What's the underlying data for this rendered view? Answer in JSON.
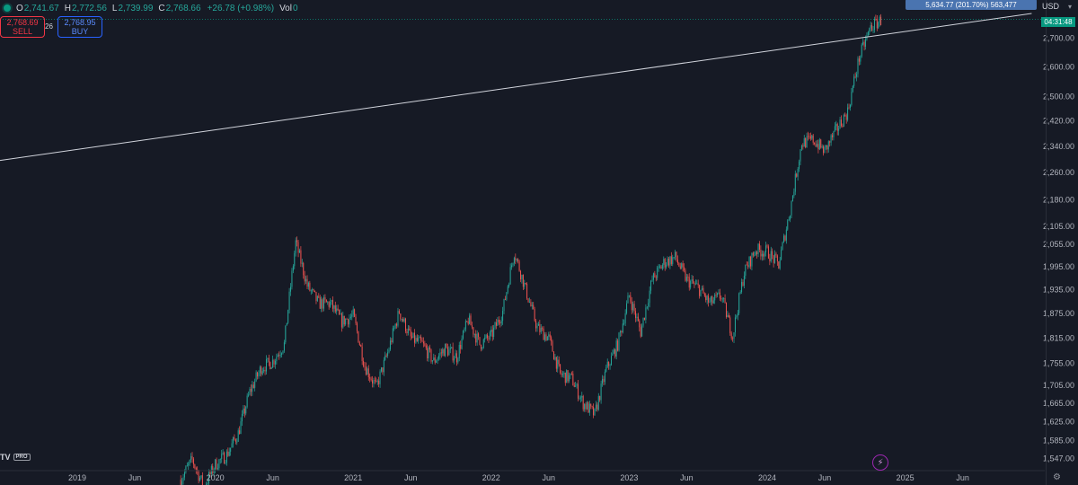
{
  "ohlc": {
    "open_label": "O",
    "open": "2,741.67",
    "high_label": "H",
    "high": "2,772.56",
    "low_label": "L",
    "low": "2,739.99",
    "close_label": "C",
    "close": "2,768.66",
    "change": "+26.78 (+0.98%)",
    "vol_label": "Vol",
    "vol": "0"
  },
  "trade": {
    "sell_price": "2,768.69",
    "sell_label": "SELL",
    "spread": "26",
    "buy_price": "2,768.95",
    "buy_label": "BUY"
  },
  "price_scale": {
    "currency": "USD",
    "ticks": [
      "2,700.00",
      "2,600.00",
      "2,500.00",
      "2,420.00",
      "2,340.00",
      "2,260.00",
      "2,180.00",
      "2,105.00",
      "2,055.00",
      "1,995.00",
      "1,935.00",
      "1,875.00",
      "1,815.00",
      "1,755.00",
      "1,705.00",
      "1,665.00",
      "1,625.00",
      "1,585.00",
      "1,547.00"
    ],
    "countdown": "04:31:48",
    "measure_tag": "5,634.77 (201.70%) 563,477"
  },
  "logo": {
    "text": "TV",
    "badge": "PRO"
  },
  "chart_data": {
    "type": "candlestick",
    "x_axis_labels": [
      "2019",
      "Jun",
      "2020",
      "Jun",
      "2021",
      "Jun",
      "2022",
      "Jun",
      "2023",
      "Jun",
      "2024",
      "Jun",
      "2025",
      "Jun"
    ],
    "y_ticks": [
      2700,
      2600,
      2500,
      2420,
      2340,
      2260,
      2180,
      2105,
      2055,
      1995,
      1935,
      1875,
      1815,
      1755,
      1705,
      1665,
      1625,
      1585,
      1547
    ],
    "y_scale": "log",
    "ylim": [
      1530,
      2800
    ],
    "trendline": {
      "from": {
        "date": "2018-05",
        "price": 2290
      },
      "to": {
        "date": "2025-12",
        "price": 2790
      }
    },
    "last_price": 2768.66,
    "path": [
      [
        "2019-10",
        1505
      ],
      [
        "2019-11",
        1545
      ],
      [
        "2019-12",
        1490
      ],
      [
        "2020-01",
        1535
      ],
      [
        "2020-02",
        1555
      ],
      [
        "2020-03",
        1600
      ],
      [
        "2020-04",
        1690
      ],
      [
        "2020-05",
        1745
      ],
      [
        "2020-06",
        1760
      ],
      [
        "2020-07",
        1800
      ],
      [
        "2020-08",
        2060
      ],
      [
        "2020-09",
        1945
      ],
      [
        "2020-10",
        1900
      ],
      [
        "2020-11",
        1900
      ],
      [
        "2020-12",
        1855
      ],
      [
        "2021-01",
        1870
      ],
      [
        "2021-02",
        1750
      ],
      [
        "2021-03",
        1700
      ],
      [
        "2021-04",
        1780
      ],
      [
        "2021-05",
        1880
      ],
      [
        "2021-06",
        1815
      ],
      [
        "2021-07",
        1800
      ],
      [
        "2021-08",
        1760
      ],
      [
        "2021-09",
        1790
      ],
      [
        "2021-10",
        1770
      ],
      [
        "2021-11",
        1860
      ],
      [
        "2021-12",
        1800
      ],
      [
        "2022-01",
        1820
      ],
      [
        "2022-02",
        1880
      ],
      [
        "2022-03",
        2035
      ],
      [
        "2022-04",
        1935
      ],
      [
        "2022-05",
        1840
      ],
      [
        "2022-06",
        1815
      ],
      [
        "2022-07",
        1730
      ],
      [
        "2022-08",
        1720
      ],
      [
        "2022-09",
        1665
      ],
      [
        "2022-10",
        1640
      ],
      [
        "2022-11",
        1740
      ],
      [
        "2022-12",
        1800
      ],
      [
        "2023-01",
        1920
      ],
      [
        "2023-02",
        1830
      ],
      [
        "2023-03",
        1960
      ],
      [
        "2023-04",
        2005
      ],
      [
        "2023-05",
        2020
      ],
      [
        "2023-06",
        1960
      ],
      [
        "2023-07",
        1940
      ],
      [
        "2023-08",
        1900
      ],
      [
        "2023-09",
        1920
      ],
      [
        "2023-10",
        1820
      ],
      [
        "2023-11",
        1980
      ],
      [
        "2023-12",
        2040
      ],
      [
        "2024-01",
        2035
      ],
      [
        "2024-02",
        2000
      ],
      [
        "2024-03",
        2150
      ],
      [
        "2024-04",
        2350
      ],
      [
        "2024-05",
        2360
      ],
      [
        "2024-06",
        2325
      ],
      [
        "2024-07",
        2390
      ],
      [
        "2024-08",
        2450
      ],
      [
        "2024-09",
        2630
      ],
      [
        "2024-10",
        2740
      ],
      [
        "2024-11",
        2768
      ]
    ]
  }
}
